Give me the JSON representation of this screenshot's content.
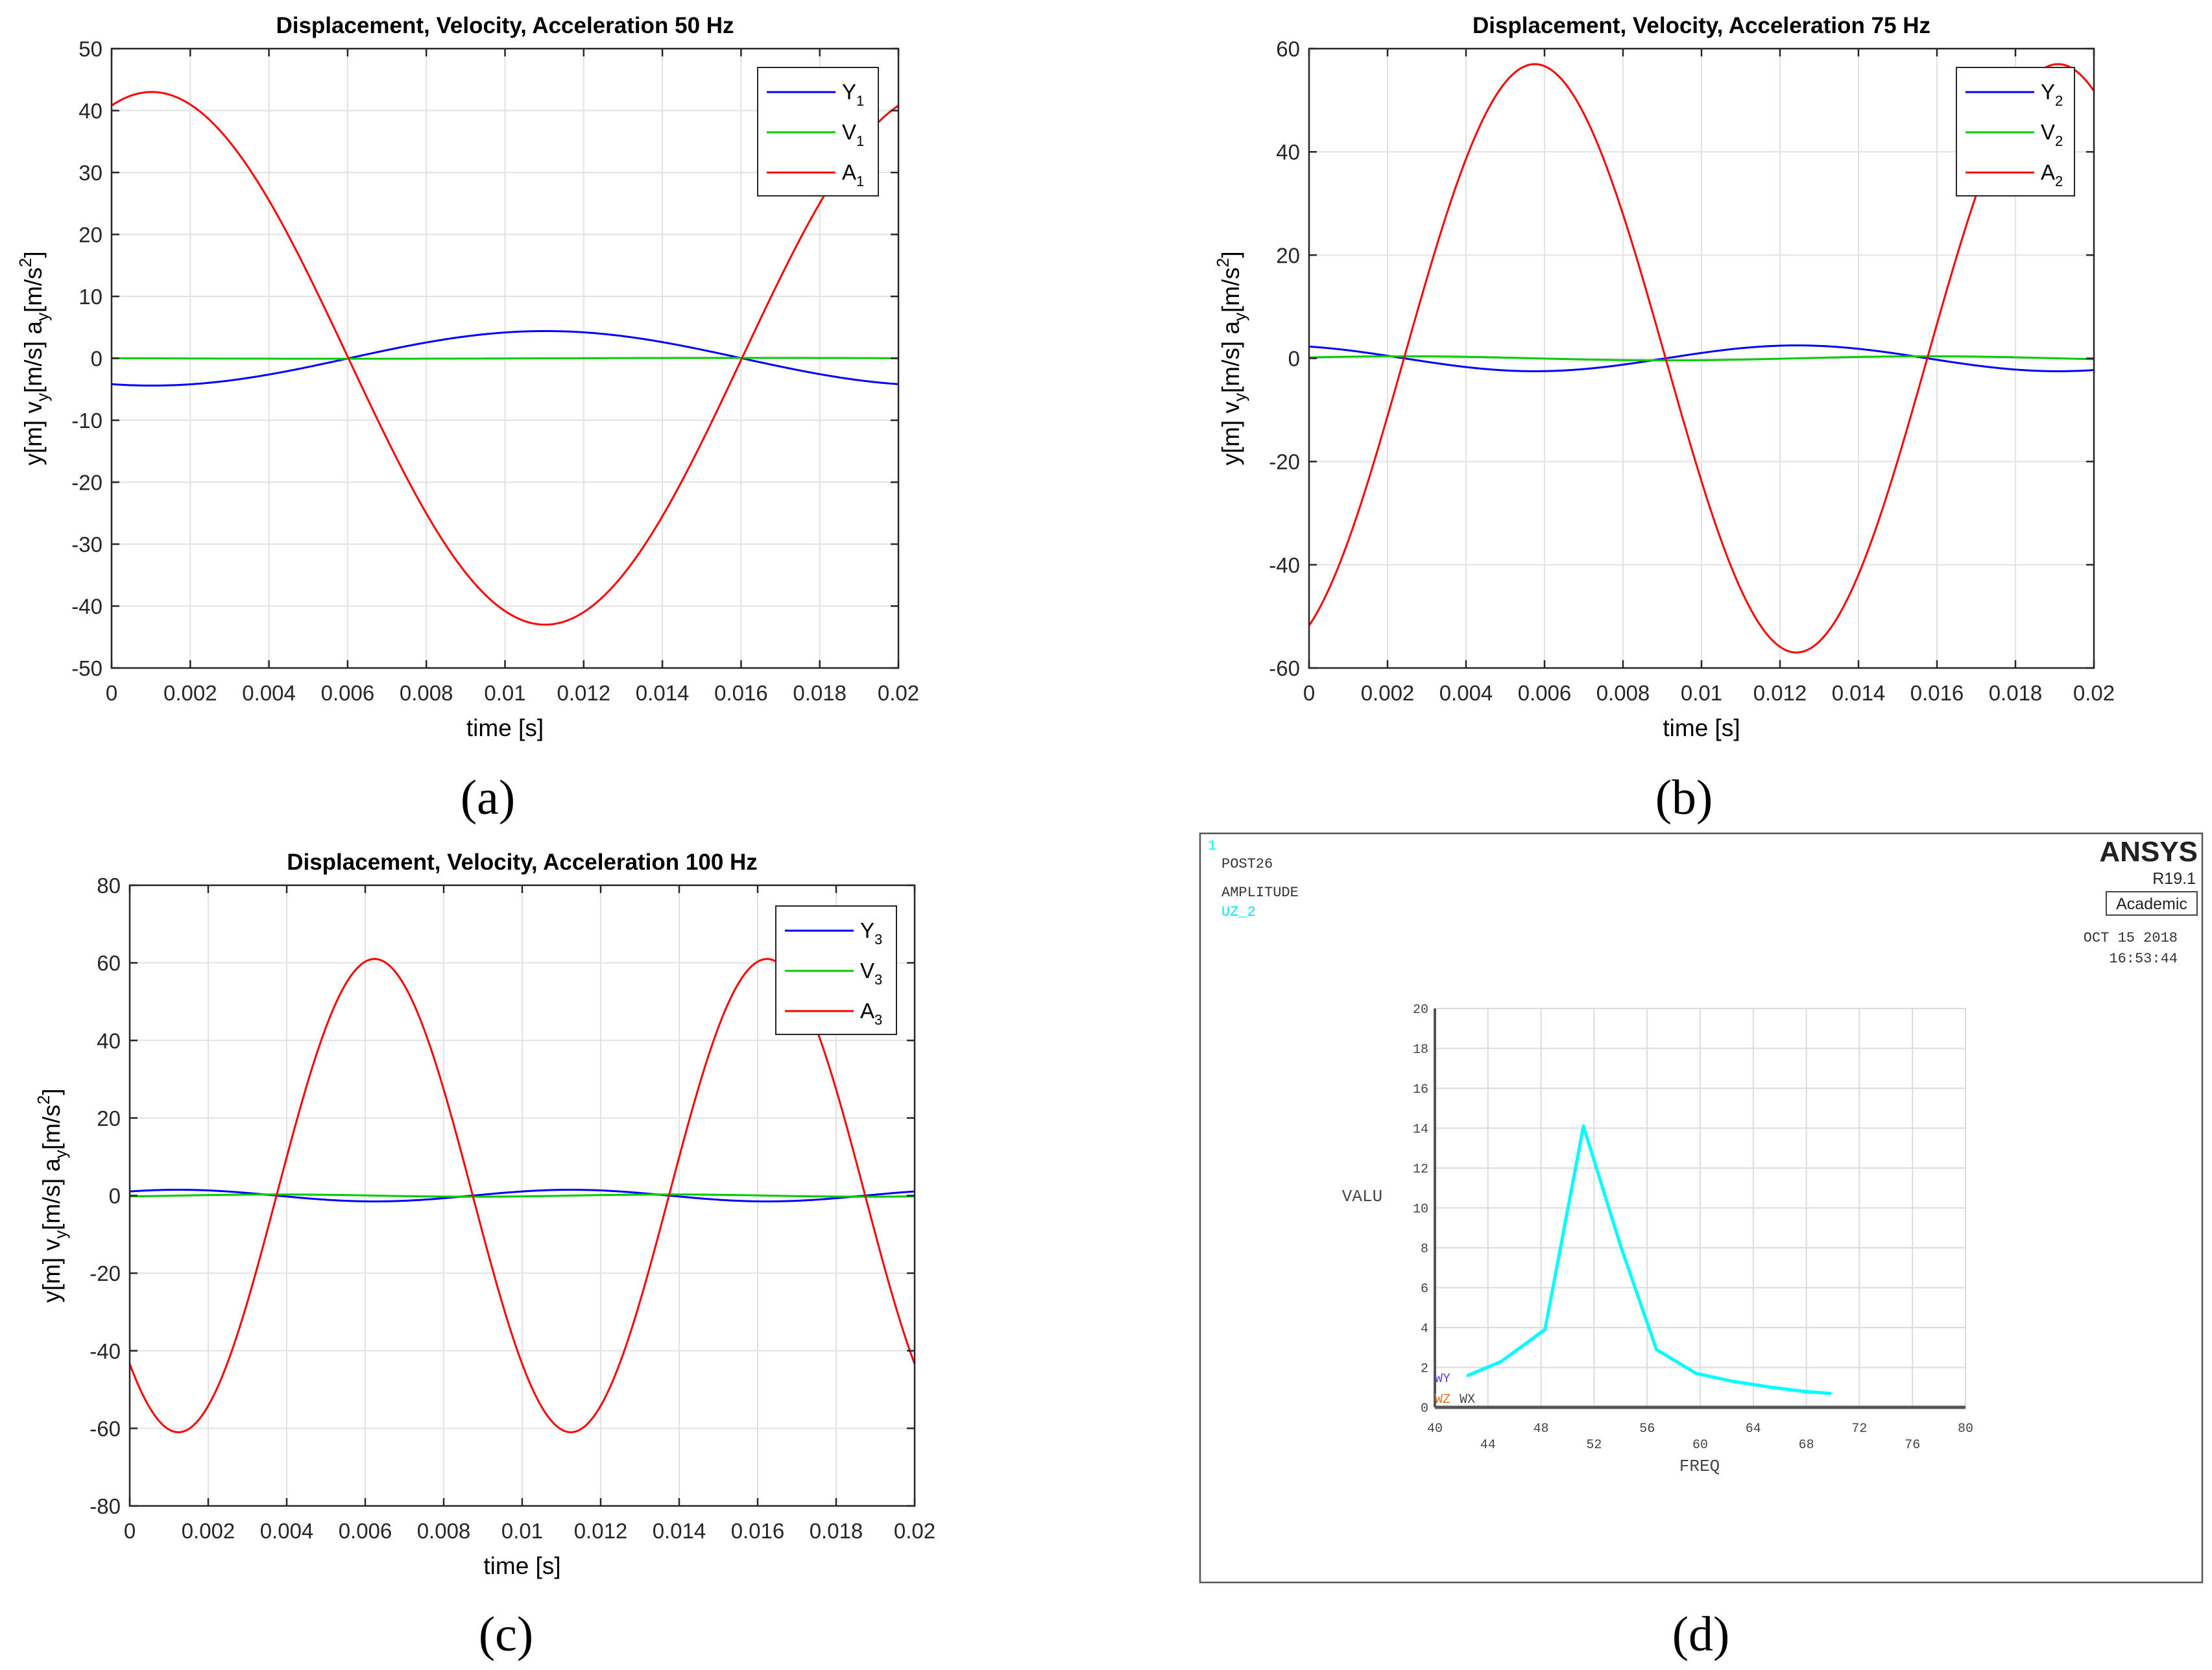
{
  "figure_labels": [
    "(a)",
    "(b)",
    "(c)",
    "(d)"
  ],
  "colors": {
    "Y": "#0000ff",
    "V": "#00cc00",
    "A": "#ff0000",
    "ansys_curve": "#00ffff"
  },
  "chart_data": [
    {
      "id": "a",
      "type": "line",
      "title": "Displacement, Velocity, Acceleration 50 Hz",
      "xlabel": "time [s]",
      "ylabel": {
        "parts": [
          "y[m] v",
          "y",
          "[m/s] a",
          "y",
          "[m/s",
          "2",
          "]"
        ]
      },
      "xlim": [
        0,
        0.02
      ],
      "ylim": [
        -50,
        50
      ],
      "xticks": [
        0,
        0.002,
        0.004,
        0.006,
        0.008,
        0.01,
        0.012,
        0.014,
        0.016,
        0.018,
        0.02
      ],
      "xtick_labels": [
        "0",
        "0.002",
        "0.004",
        "0.006",
        "0.008",
        "0.01",
        "0.012",
        "0.014",
        "0.016",
        "0.018",
        "0.02"
      ],
      "yticks": [
        -50,
        -40,
        -30,
        -20,
        -10,
        0,
        10,
        20,
        30,
        40,
        50
      ],
      "ytick_labels": [
        "-50",
        "-40",
        "-30",
        "-20",
        "-10",
        "0",
        "10",
        "20",
        "30",
        "40",
        "50"
      ],
      "grid": true,
      "legend": [
        {
          "label": "Y",
          "sub": "1",
          "color": "#0000ff"
        },
        {
          "label": "V",
          "sub": "1",
          "color": "#00cc00"
        },
        {
          "label": "A",
          "sub": "1",
          "color": "#ff0000"
        }
      ],
      "series": [
        {
          "name": "Y1",
          "kind": "sine",
          "amp": 4.4,
          "freq": 50,
          "phase": 4.39,
          "color": "#0000ff"
        },
        {
          "name": "V1",
          "kind": "sine",
          "amp": 0.07,
          "freq": 50,
          "phase": 2.82,
          "color": "#00cc00"
        },
        {
          "name": "A1",
          "kind": "sine",
          "amp": 43,
          "freq": 50,
          "phase": 1.25,
          "color": "#ff0000"
        }
      ]
    },
    {
      "id": "b",
      "type": "line",
      "title": "Displacement, Velocity, Acceleration 75 Hz",
      "xlabel": "time [s]",
      "ylabel": {
        "parts": [
          "y[m] v",
          "y",
          "[m/s] a",
          "y",
          "[m/s",
          "2",
          "]"
        ]
      },
      "xlim": [
        0,
        0.02
      ],
      "ylim": [
        -60,
        60
      ],
      "xticks": [
        0,
        0.002,
        0.004,
        0.006,
        0.008,
        0.01,
        0.012,
        0.014,
        0.016,
        0.018,
        0.02
      ],
      "xtick_labels": [
        "0",
        "0.002",
        "0.004",
        "0.006",
        "0.008",
        "0.01",
        "0.012",
        "0.014",
        "0.016",
        "0.018",
        "0.02"
      ],
      "yticks": [
        -60,
        -40,
        -20,
        0,
        20,
        40,
        60
      ],
      "ytick_labels": [
        "-60",
        "-40",
        "-20",
        "0",
        "20",
        "40",
        "60"
      ],
      "grid": true,
      "legend": [
        {
          "label": "Y",
          "sub": "2",
          "color": "#0000ff"
        },
        {
          "label": "V",
          "sub": "2",
          "color": "#00cc00"
        },
        {
          "label": "A",
          "sub": "2",
          "color": "#ff0000"
        }
      ],
      "series": [
        {
          "name": "Y2",
          "kind": "sine",
          "amp": 2.5,
          "freq": 75,
          "phase": 2.0,
          "color": "#0000ff"
        },
        {
          "name": "V2",
          "kind": "sine",
          "amp": 0.4,
          "freq": 75,
          "phase": 0.43,
          "color": "#00cc00"
        },
        {
          "name": "A2",
          "kind": "sine",
          "amp": 57,
          "freq": 75,
          "phase": -1.14,
          "color": "#ff0000"
        }
      ]
    },
    {
      "id": "c",
      "type": "line",
      "title": "Displacement, Velocity, Acceleration 100 Hz",
      "xlabel": "time [s]",
      "ylabel": {
        "parts": [
          "y[m] v",
          "y",
          "[m/s] a",
          "y",
          "[m/s",
          "2",
          "]"
        ]
      },
      "xlim": [
        0,
        0.02
      ],
      "ylim": [
        -80,
        80
      ],
      "xticks": [
        0,
        0.002,
        0.004,
        0.006,
        0.008,
        0.01,
        0.012,
        0.014,
        0.016,
        0.018,
        0.02
      ],
      "xtick_labels": [
        "0",
        "0.002",
        "0.004",
        "0.006",
        "0.008",
        "0.01",
        "0.012",
        "0.014",
        "0.016",
        "0.018",
        "0.02"
      ],
      "yticks": [
        -80,
        -60,
        -40,
        -20,
        0,
        20,
        40,
        60,
        80
      ],
      "ytick_labels": [
        "-80",
        "-60",
        "-40",
        "-20",
        "0",
        "20",
        "40",
        "60",
        "80"
      ],
      "grid": true,
      "legend": [
        {
          "label": "Y",
          "sub": "3",
          "color": "#0000ff"
        },
        {
          "label": "V",
          "sub": "3",
          "color": "#00cc00"
        },
        {
          "label": "A",
          "sub": "3",
          "color": "#ff0000"
        }
      ],
      "series": [
        {
          "name": "Y3",
          "kind": "sine",
          "amp": 1.5,
          "freq": 100,
          "phase": 0.79,
          "color": "#0000ff"
        },
        {
          "name": "V3",
          "kind": "sine",
          "amp": 0.3,
          "freq": 100,
          "phase": -0.78,
          "color": "#00cc00"
        },
        {
          "name": "A3",
          "kind": "sine",
          "amp": 61,
          "freq": 100,
          "phase": -2.35,
          "color": "#ff0000"
        }
      ]
    },
    {
      "id": "d",
      "type": "line",
      "software": "ANSYS",
      "version": "R19.1",
      "license": "Academic",
      "date": "OCT 15 2018",
      "time": "16:53:44",
      "window_number": "1",
      "header_lines": [
        "POST26",
        "AMPLITUDE"
      ],
      "series_label": "UZ_2",
      "xlabel": "FREQ",
      "ylabel": "VALU",
      "axis_triad": [
        "WY",
        "WZ",
        "WX"
      ],
      "xlim": [
        40,
        80
      ],
      "ylim": [
        0,
        20
      ],
      "xticks": [
        40,
        44,
        48,
        52,
        56,
        60,
        64,
        68,
        72,
        76,
        80
      ],
      "xtick_labels": [
        "40",
        "44",
        "48",
        "52",
        "56",
        "60",
        "64",
        "68",
        "72",
        "76",
        "80"
      ],
      "yticks": [
        0,
        2,
        4,
        6,
        8,
        10,
        12,
        14,
        16,
        18,
        20
      ],
      "ytick_labels": [
        "0",
        "2",
        "4",
        "6",
        "8",
        "10",
        "12",
        "14",
        "16",
        "18",
        "20"
      ],
      "grid": true,
      "series": [
        {
          "name": "UZ_2",
          "color": "#00ffff",
          "x": [
            42.5,
            45,
            48.3,
            51.2,
            54,
            56.7,
            59.7,
            62.5,
            65.4,
            67.8,
            69.8
          ],
          "y": [
            1.6,
            2.3,
            3.9,
            14.1,
            8.1,
            2.9,
            1.7,
            1.3,
            1.0,
            0.8,
            0.7
          ]
        }
      ]
    }
  ]
}
